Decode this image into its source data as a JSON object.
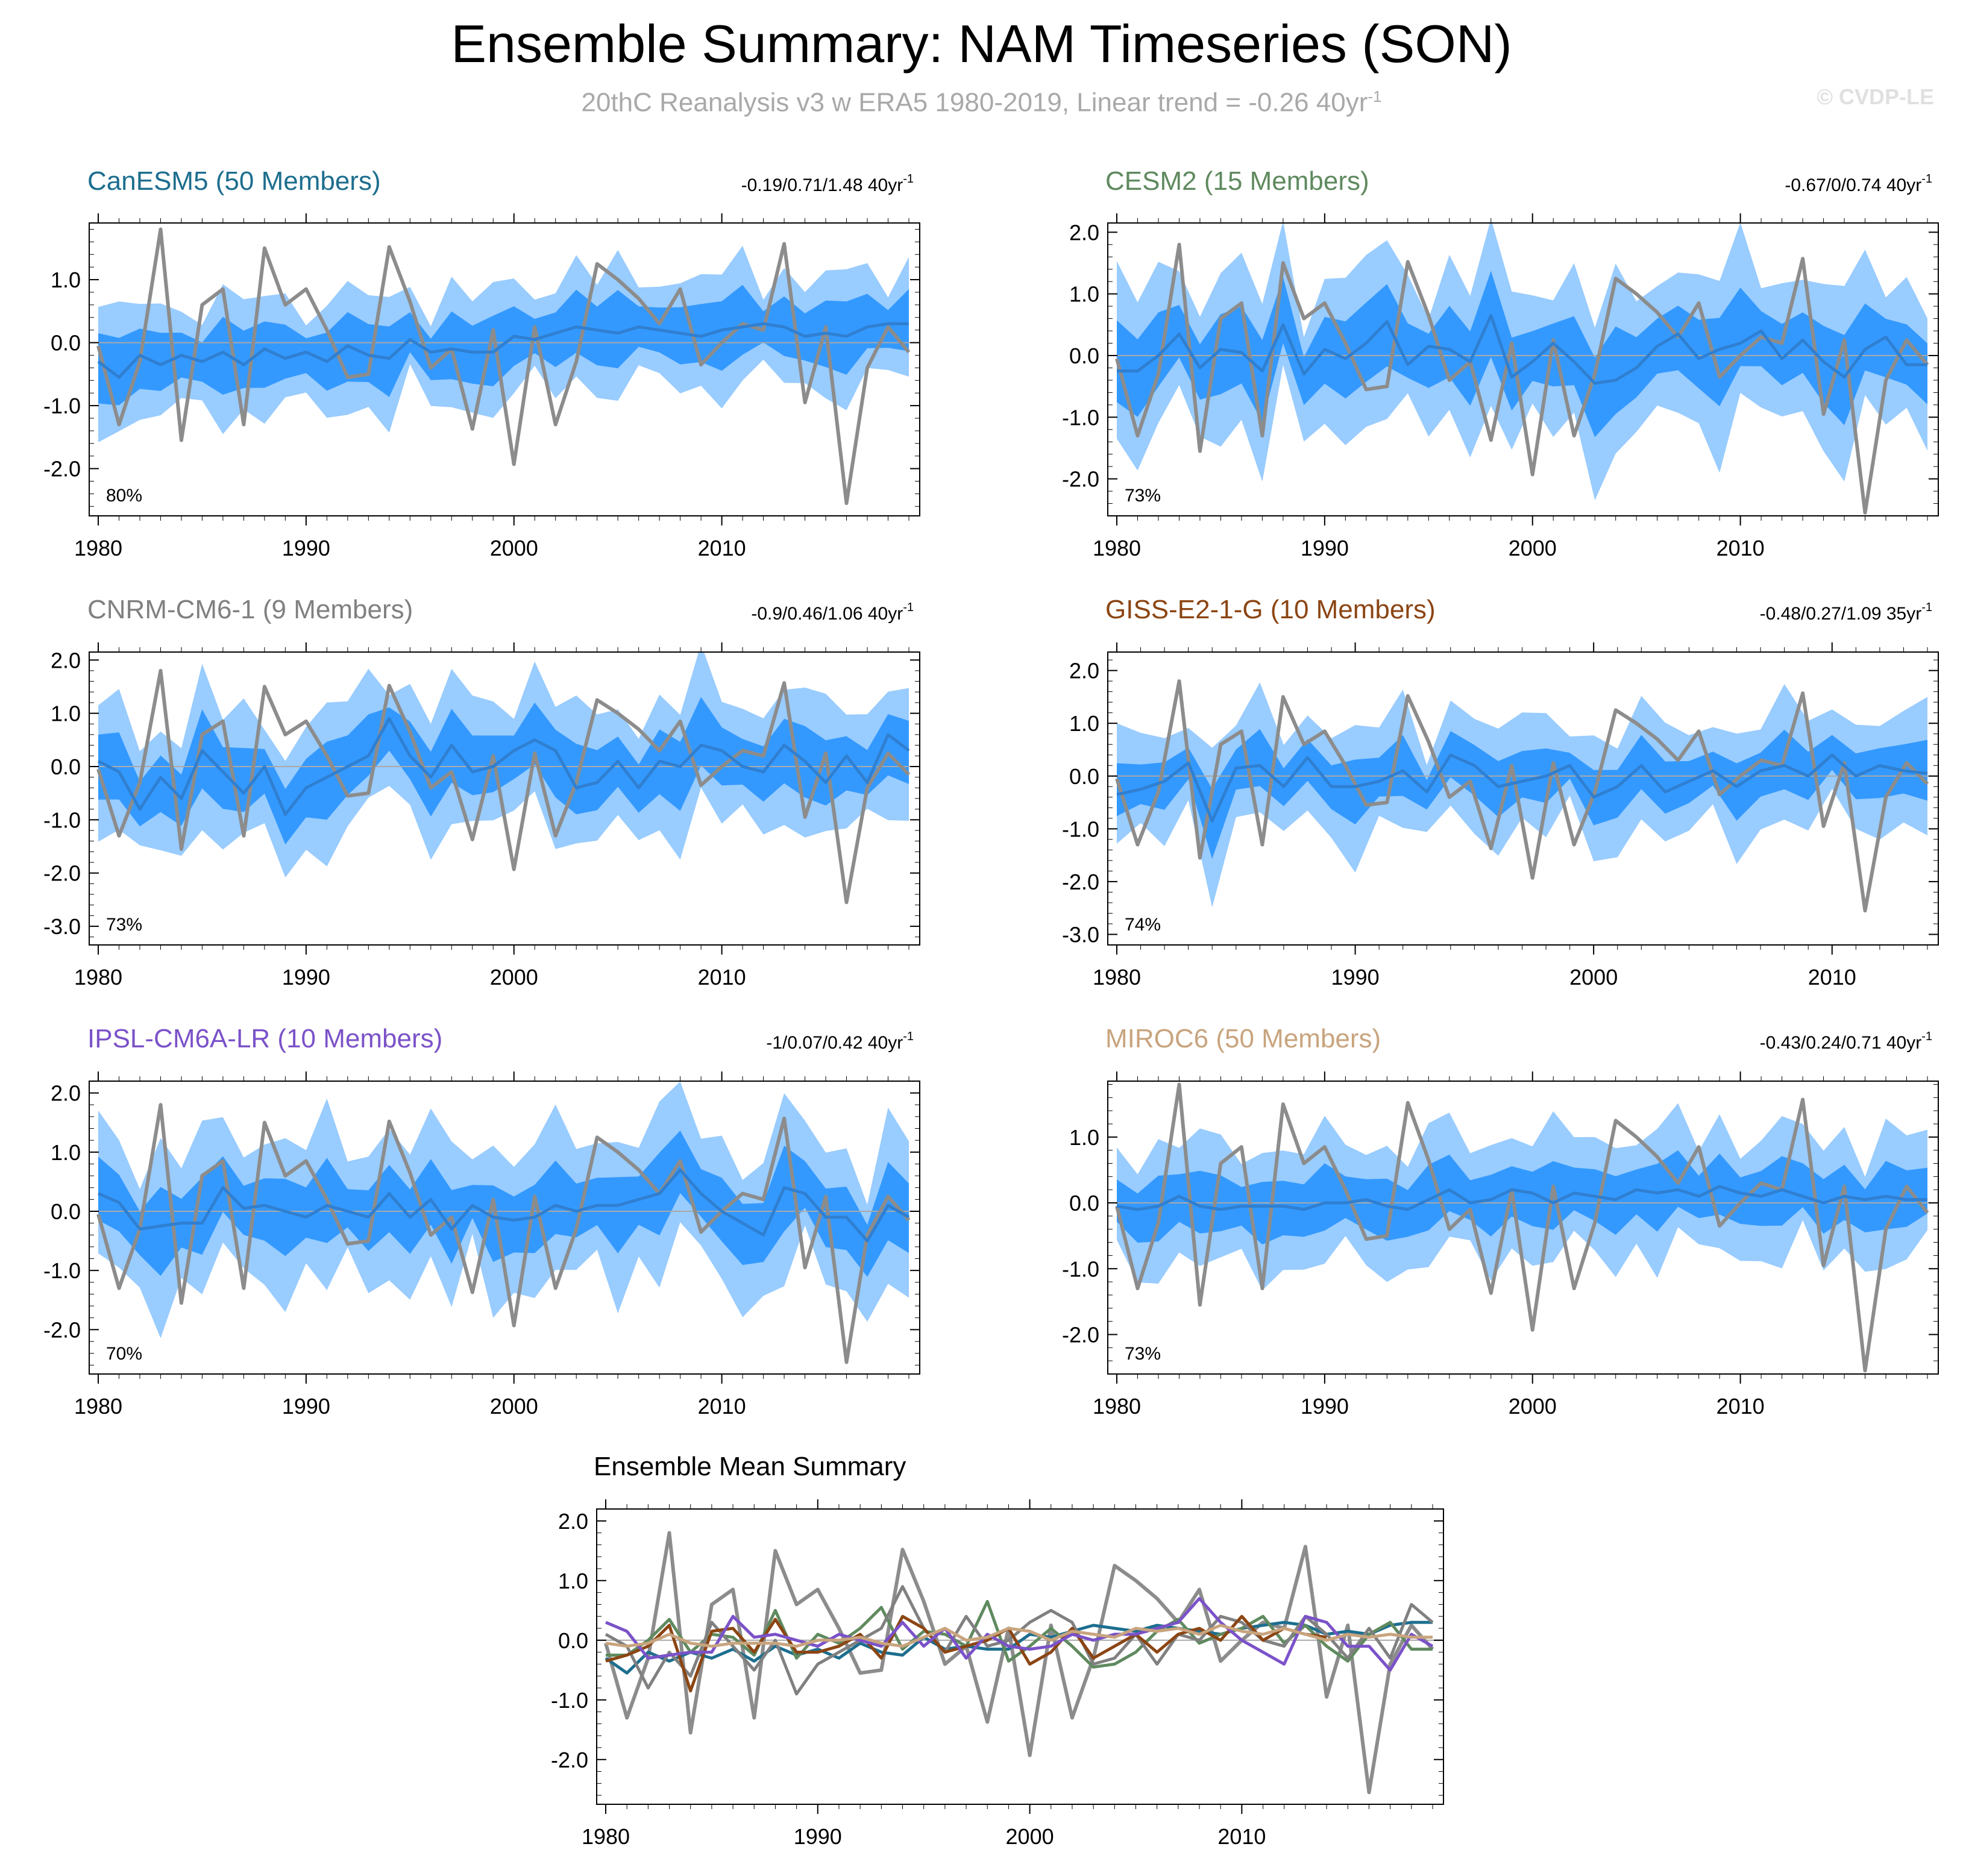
{
  "title": "Ensemble Summary: NAM Timeseries (SON)",
  "subtitle": "20thC Reanalysis v3 w ERA5 1980-2019, Linear trend = -0.26 40yr",
  "subtitle_unit_sup": "-1",
  "credit": "© CVDP-LE",
  "colors": {
    "band_outer": "#99ccff",
    "band_inner": "#3399ff",
    "ensemble_mean": "#2f7fd1",
    "observation": "#8c8c8c",
    "zero_line": "#a9a9a9"
  },
  "observation_series": {
    "name": "20thC Reanalysis v3 w ERA5",
    "values": [
      -0.05,
      -1.3,
      -0.3,
      1.8,
      -1.55,
      0.6,
      0.85,
      -1.3,
      1.5,
      0.6,
      0.85,
      0.2,
      -0.55,
      -0.5,
      1.52,
      0.65,
      -0.4,
      -0.1,
      -1.37,
      0.2,
      -1.93,
      0.25,
      -1.3,
      -0.3,
      1.25,
      1.0,
      0.7,
      0.3,
      0.85,
      -0.35,
      0.0,
      0.3,
      0.2,
      1.57,
      -0.95,
      0.25,
      -2.55,
      -0.4,
      0.25,
      -0.15
    ]
  },
  "chart_data": [
    {
      "type": "area",
      "name": "CanESM5 (50 Members)",
      "title_color": "#1d6e8e",
      "trend_text": "-0.19/0.71/1.48 40yr",
      "trend_sup": "-1",
      "percent_label": "80%",
      "xlabel_ticks": [
        "1980",
        "1990",
        "2000",
        "2010"
      ],
      "x": [
        1980,
        2019
      ],
      "ylim": [
        -2.75,
        1.9
      ],
      "y_ticks": [
        1.0,
        0.0,
        -1.0,
        -2.0
      ],
      "y_tick_labels": [
        "1.0",
        "0.0",
        "-1.0",
        "-2.0"
      ],
      "ensemble_mean": [
        -0.3,
        -0.55,
        -0.2,
        -0.35,
        -0.2,
        -0.3,
        -0.15,
        -0.35,
        -0.1,
        -0.25,
        -0.15,
        -0.3,
        -0.05,
        -0.2,
        -0.25,
        0.05,
        -0.15,
        -0.1,
        -0.15,
        -0.15,
        0.1,
        0.05,
        0.15,
        0.25,
        0.2,
        0.15,
        0.25,
        0.2,
        0.15,
        0.1,
        0.2,
        0.25,
        0.3,
        0.25,
        0.1,
        0.15,
        0.1,
        0.25,
        0.3,
        0.3
      ],
      "inner_halfwidth": 0.6,
      "outer_halfwidth": 1.1,
      "observed": true
    },
    {
      "type": "area",
      "name": "CESM2 (15 Members)",
      "title_color": "#5f8a5f",
      "trend_text": "-0.67/0/0.74 40yr",
      "trend_sup": "-1",
      "percent_label": "73%",
      "xlabel_ticks": [
        "1980",
        "1990",
        "2000",
        "2010"
      ],
      "x": [
        1980,
        2019
      ],
      "ylim": [
        -2.6,
        2.15
      ],
      "y_ticks": [
        2.0,
        1.0,
        0.0,
        -1.0,
        -2.0
      ],
      "y_tick_labels": [
        "2.0",
        "1.0",
        "0.0",
        "-1.0",
        "-2.0"
      ],
      "ensemble_mean": [
        -0.25,
        -0.25,
        0.0,
        0.35,
        -0.2,
        0.1,
        0.05,
        -0.25,
        0.5,
        -0.3,
        0.1,
        -0.05,
        0.2,
        0.55,
        -0.15,
        0.15,
        0.1,
        -0.1,
        0.65,
        -0.35,
        -0.1,
        0.2,
        -0.1,
        -0.45,
        -0.4,
        -0.2,
        0.15,
        0.35,
        -0.05,
        0.1,
        0.2,
        0.4,
        -0.05,
        0.25,
        -0.1,
        -0.35,
        0.1,
        0.3,
        -0.15,
        -0.15
      ],
      "inner_halfwidth": 0.75,
      "outer_halfwidth": 1.55,
      "observed": true
    },
    {
      "type": "area",
      "name": "CNRM-CM6-1 (9 Members)",
      "title_color": "#808080",
      "trend_text": "-0.9/0.46/1.06 40yr",
      "trend_sup": "-1",
      "percent_label": "73%",
      "xlabel_ticks": [
        "1980",
        "1990",
        "2000",
        "2010"
      ],
      "x": [
        1980,
        2019
      ],
      "ylim": [
        -3.35,
        2.15
      ],
      "y_ticks": [
        2.0,
        1.0,
        0.0,
        -1.0,
        -2.0,
        -3.0
      ],
      "y_tick_labels": [
        "2.0",
        "1.0",
        "0.0",
        "-1.0",
        "-2.0",
        "-3.0"
      ],
      "ensemble_mean": [
        0.1,
        -0.1,
        -0.8,
        -0.2,
        -0.6,
        0.3,
        -0.1,
        -0.5,
        0.0,
        -0.9,
        -0.4,
        -0.2,
        0.0,
        0.2,
        0.9,
        0.2,
        -0.2,
        0.4,
        -0.1,
        0.0,
        0.3,
        0.5,
        0.3,
        -0.4,
        -0.3,
        0.1,
        -0.4,
        0.1,
        0.0,
        0.4,
        0.3,
        0.0,
        -0.1,
        0.4,
        0.1,
        -0.3,
        0.2,
        -0.3,
        0.6,
        0.3
      ],
      "inner_halfwidth": 0.75,
      "outer_halfwidth": 1.5,
      "observed": true
    },
    {
      "type": "area",
      "name": "GISS-E2-1-G (10 Members)",
      "title_color": "#8b4513",
      "trend_text": "-0.48/0.27/1.09 35yr",
      "trend_sup": "-1",
      "percent_label": "74%",
      "xlabel_ticks": [
        "1980",
        "1990",
        "2000",
        "2010"
      ],
      "x": [
        1980,
        2014
      ],
      "ylim": [
        -3.2,
        2.35
      ],
      "y_ticks": [
        2.0,
        1.0,
        0.0,
        -1.0,
        -2.0,
        -3.0
      ],
      "y_tick_labels": [
        "2.0",
        "1.0",
        "0.0",
        "-1.0",
        "-2.0",
        "-3.0"
      ],
      "ensemble_mean": [
        -0.35,
        -0.25,
        -0.1,
        0.25,
        -0.85,
        0.15,
        0.2,
        -0.2,
        0.35,
        -0.2,
        -0.2,
        -0.1,
        0.1,
        -0.3,
        0.4,
        0.2,
        -0.2,
        -0.1,
        0.0,
        0.2,
        -0.4,
        -0.2,
        0.2,
        -0.3,
        -0.1,
        0.1,
        -0.2,
        0.1,
        0.2,
        0.0,
        0.4,
        0.0,
        0.2,
        0.1,
        0.05
      ],
      "inner_halfwidth": 0.6,
      "outer_halfwidth": 1.3,
      "observed": true
    },
    {
      "type": "area",
      "name": "IPSL-CM6A-LR (10 Members)",
      "title_color": "#7b52c9",
      "trend_text": "-1/0.07/0.42 40yr",
      "trend_sup": "-1",
      "percent_label": "70%",
      "xlabel_ticks": [
        "1980",
        "1990",
        "2000",
        "2010"
      ],
      "x": [
        1980,
        2019
      ],
      "ylim": [
        -2.75,
        2.2
      ],
      "y_ticks": [
        2.0,
        1.0,
        0.0,
        -1.0,
        -2.0
      ],
      "y_tick_labels": [
        "2.0",
        "1.0",
        "0.0",
        "-1.0",
        "-2.0"
      ],
      "ensemble_mean": [
        0.3,
        0.15,
        -0.3,
        -0.25,
        -0.2,
        -0.2,
        0.4,
        0.05,
        0.1,
        0.0,
        -0.1,
        0.1,
        0.0,
        -0.1,
        0.3,
        -0.1,
        0.2,
        -0.3,
        0.1,
        -0.1,
        -0.15,
        -0.1,
        0.1,
        0.0,
        0.1,
        0.1,
        0.2,
        0.3,
        0.7,
        0.3,
        0.0,
        -0.2,
        -0.4,
        0.4,
        0.3,
        -0.1,
        -0.1,
        -0.5,
        0.1,
        -0.1
      ],
      "inner_halfwidth": 0.7,
      "outer_halfwidth": 1.5,
      "observed": true
    },
    {
      "type": "area",
      "name": "MIROC6 (50 Members)",
      "title_color": "#c8a47e",
      "trend_text": "-0.43/0.24/0.71 40yr",
      "trend_sup": "-1",
      "percent_label": "73%",
      "xlabel_ticks": [
        "1980",
        "1990",
        "2000",
        "2010"
      ],
      "x": [
        1980,
        2019
      ],
      "ylim": [
        -2.6,
        1.85
      ],
      "y_ticks": [
        1.0,
        0.0,
        -1.0,
        -2.0
      ],
      "y_tick_labels": [
        "1.0",
        "0.0",
        "-1.0",
        "-2.0"
      ],
      "ensemble_mean": [
        -0.05,
        -0.1,
        -0.05,
        0.1,
        -0.05,
        -0.1,
        -0.05,
        -0.05,
        -0.05,
        -0.1,
        0.0,
        0.0,
        0.05,
        -0.05,
        -0.1,
        0.05,
        0.2,
        0.0,
        0.05,
        0.2,
        0.15,
        0.0,
        0.15,
        0.1,
        0.05,
        0.2,
        0.15,
        0.2,
        0.1,
        0.25,
        0.15,
        0.1,
        0.2,
        0.1,
        0.0,
        0.1,
        0.05,
        0.1,
        0.05,
        0.05
      ],
      "inner_halfwidth": 0.55,
      "outer_halfwidth": 1.15,
      "observed": true
    },
    {
      "type": "line",
      "name": "Ensemble Mean Summary",
      "xlabel_ticks": [
        "1980",
        "1990",
        "2000",
        "2010"
      ],
      "x": [
        1980,
        2019
      ],
      "ylim": [
        -2.75,
        2.2
      ],
      "y_ticks": [
        2.0,
        1.0,
        0.0,
        -1.0,
        -2.0
      ],
      "y_tick_labels": [
        "2.0",
        "1.0",
        "0.0",
        "-1.0",
        "-2.0"
      ],
      "series": [
        "CanESM5",
        "CESM2",
        "CNRM-CM6-1",
        "GISS-E2-1-G",
        "IPSL-CM6A-LR",
        "MIROC6",
        "20thC Reanalysis v3 w ERA5"
      ]
    }
  ]
}
